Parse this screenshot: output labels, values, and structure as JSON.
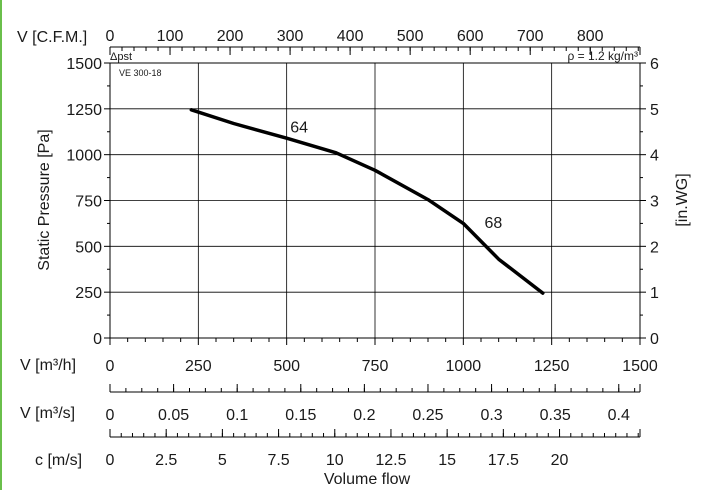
{
  "chart_data": {
    "type": "line",
    "model": "VE 300-18",
    "dp_label": "Δpst",
    "density_note": "ρ = 1.2 kg/m³",
    "ylabel": "Static Pressure [Pa]",
    "xlabel": "Volume flow",
    "ylim": [
      0,
      1500
    ],
    "y_ticks": [
      "0",
      "250",
      "500",
      "750",
      "1000",
      "1250",
      "1500"
    ],
    "y2_axis": {
      "label": "[in.WG]",
      "range": [
        0,
        6
      ],
      "ticks": [
        "0",
        "1",
        "2",
        "3",
        "4",
        "5",
        "6"
      ]
    },
    "cfm_axis": {
      "label": "V [C.F.M.]",
      "range": [
        0,
        882.9
      ],
      "ticks": [
        "0",
        "100",
        "200",
        "300",
        "400",
        "500",
        "600",
        "700",
        "800"
      ]
    },
    "x_m3h_axis": {
      "label": "V [m³/h]",
      "range": [
        0,
        1500
      ],
      "ticks": [
        "0",
        "250",
        "500",
        "750",
        "1000",
        "1250",
        "1500"
      ]
    },
    "x_m3s_axis": {
      "label": "V [m³/s]",
      "range": [
        0,
        0.4167
      ],
      "ticks": [
        "0",
        "0.05",
        "0.1",
        "0.15",
        "0.2",
        "0.25",
        "0.3",
        "0.35",
        "0.4"
      ]
    },
    "x_velocity_axis": {
      "label": "c [m/s]",
      "range": [
        0,
        23.58
      ],
      "ticks": [
        "0",
        "2.5",
        "5",
        "7.5",
        "10",
        "12.5",
        "15",
        "17.5",
        "20"
      ]
    },
    "series": [
      {
        "x": [
          230,
          350,
          500,
          640,
          750,
          900,
          1000,
          1100,
          1225
        ],
        "y": [
          1245,
          1170,
          1090,
          1010,
          915,
          755,
          625,
          430,
          245
        ]
      }
    ],
    "annotations": [
      {
        "text": "64",
        "x": 510,
        "y": 1120
      },
      {
        "text": "68",
        "x": 1060,
        "y": 600
      }
    ],
    "grid": true
  }
}
